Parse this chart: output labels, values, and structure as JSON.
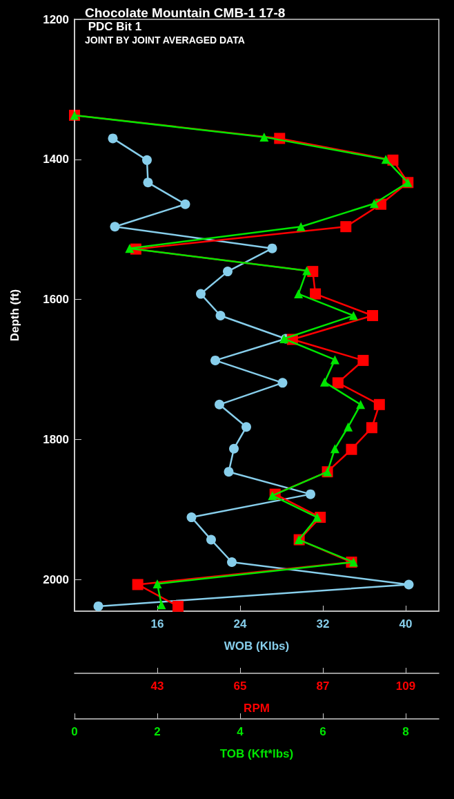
{
  "chart_data": [
    {
      "type": "line",
      "title": "Chocolate Mountain CMB-1 17-8",
      "subtitle": "PDC Bit 1",
      "annotations": [
        "JOINT BY JOINT AVERAGED DATA"
      ],
      "ylabel": "Depth (ft)",
      "ylim": [
        2045,
        1200
      ],
      "yticks": [
        1200,
        1400,
        1600,
        1800,
        2000
      ],
      "xlabel": "WOB (Klbs)",
      "xlim": [
        8,
        43.2
      ],
      "xticks": [
        16,
        24,
        32,
        40
      ],
      "line_style": "solid",
      "series": [
        {
          "color": "#87ceeb",
          "marker": "circle",
          "x": [
            11.7,
            15.0,
            15.1,
            18.7,
            11.9,
            27.1,
            22.8,
            20.2,
            22.1,
            28.4,
            21.6,
            28.1,
            22.0,
            24.6,
            23.4,
            22.9,
            30.8,
            19.3,
            21.2,
            23.2,
            40.3,
            10.3
          ],
          "values": [
            1370,
            1401,
            1433,
            1464,
            1496,
            1527,
            1560,
            1592,
            1623,
            1656,
            1687,
            1719,
            1750,
            1782,
            1813,
            1846,
            1878,
            1911,
            1943,
            1975,
            2007,
            2038
          ]
        }
      ]
    },
    {
      "type": "line",
      "ylim": [
        2045,
        1200
      ],
      "yticks": [
        1200,
        1400,
        1600,
        1800,
        2000
      ],
      "tick_labels": "x",
      "xlabel": "RPM",
      "xlim": [
        21,
        117.8
      ],
      "xticks": [
        43,
        65,
        87,
        109
      ],
      "line_style": "solid",
      "series": [
        {
          "color": "#ff0000",
          "marker": "square",
          "x": [
            21,
            75.5,
            105.6,
            109.6,
            102.4,
            93.1,
            37.3,
            84.3,
            85.0,
            100.2,
            78.9,
            97.7,
            91.0,
            102.0,
            100.0,
            94.6,
            88.2,
            74.3,
            86.3,
            80.7,
            94.6,
            37.8,
            48.5
          ],
          "values": [
            1337,
            1370,
            1401,
            1433,
            1464,
            1496,
            1528,
            1560,
            1592,
            1623,
            1657,
            1687,
            1719,
            1750,
            1783,
            1814,
            1846,
            1878,
            1911,
            1943,
            1975,
            2007,
            2038
          ]
        }
      ]
    },
    {
      "type": "line",
      "ylim": [
        2045,
        1200
      ],
      "yticks": [
        1200,
        1400,
        1600,
        1800,
        2000
      ],
      "tick_labels": "x",
      "xlabel": "TOB (Kft*lbs)",
      "xlim": [
        0,
        8.8
      ],
      "xticks": [
        0,
        2,
        4,
        6,
        8
      ],
      "line_style": "solid",
      "series": [
        {
          "color": "#00e600",
          "marker": "triangle",
          "x": [
            0,
            4.58,
            7.52,
            8.05,
            7.24,
            5.47,
            1.33,
            5.61,
            5.41,
            6.74,
            5.06,
            6.29,
            6.04,
            6.91,
            6.61,
            6.29,
            6.11,
            4.78,
            5.86,
            5.42,
            6.74,
            2.0,
            2.1
          ],
          "values": [
            1337,
            1368,
            1400,
            1433,
            1463,
            1496,
            1527,
            1559,
            1592,
            1623,
            1656,
            1686,
            1718,
            1750,
            1782,
            1813,
            1846,
            1880,
            1911,
            1943,
            1975,
            2006,
            2036
          ]
        }
      ]
    }
  ]
}
